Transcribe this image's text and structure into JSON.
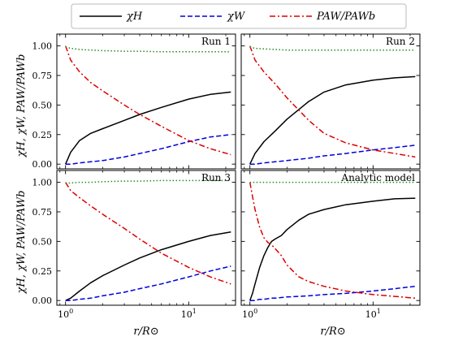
{
  "legend": [
    {
      "label": "χH",
      "color": "#000000",
      "dash": "solid"
    },
    {
      "label": "χW",
      "color": "#0000dd",
      "dash": "dashed"
    },
    {
      "label": "PAW/PAWb",
      "color": "#dd0000",
      "dash": "dashdot"
    }
  ],
  "labels": {
    "xlabel": "r/R⊙",
    "ylabel": "χH, χW, PAW/PAWb"
  },
  "chart_data": [
    {
      "type": "line",
      "title": "Run 1",
      "xscale": "log",
      "xlim": [
        0.85,
        24
      ],
      "ylim": [
        -0.04,
        1.1
      ],
      "xticks": [
        "10^0",
        "10^1"
      ],
      "yticks": [
        "0.00",
        "0.25",
        "0.50",
        "0.75",
        "1.00"
      ],
      "x": [
        1,
        1.1,
        1.3,
        1.6,
        2,
        3,
        4,
        6,
        10,
        15,
        22
      ],
      "series": [
        {
          "name": "χH",
          "values": [
            0.0,
            0.1,
            0.2,
            0.26,
            0.3,
            0.37,
            0.42,
            0.48,
            0.55,
            0.59,
            0.61
          ]
        },
        {
          "name": "χW",
          "values": [
            0.0,
            0.0,
            0.01,
            0.02,
            0.03,
            0.06,
            0.09,
            0.13,
            0.19,
            0.23,
            0.25
          ]
        },
        {
          "name": "PAW/PAWb",
          "values": [
            1.0,
            0.88,
            0.78,
            0.69,
            0.62,
            0.5,
            0.42,
            0.32,
            0.2,
            0.13,
            0.08
          ]
        },
        {
          "name": "",
          "values": [
            0.99,
            0.98,
            0.97,
            0.965,
            0.96,
            0.955,
            0.955,
            0.95,
            0.95,
            0.95,
            0.95
          ]
        }
      ]
    },
    {
      "type": "line",
      "title": "Run 2",
      "xscale": "log",
      "xlim": [
        0.85,
        24
      ],
      "ylim": [
        -0.04,
        1.1
      ],
      "xticks": [
        "10^0",
        "10^1"
      ],
      "yticks": [
        "0.00",
        "0.25",
        "0.50",
        "0.75",
        "1.00"
      ],
      "x": [
        1,
        1.1,
        1.3,
        1.6,
        2,
        3,
        4,
        6,
        10,
        15,
        22
      ],
      "series": [
        {
          "name": "χH",
          "values": [
            0.0,
            0.09,
            0.19,
            0.28,
            0.38,
            0.53,
            0.61,
            0.67,
            0.71,
            0.73,
            0.74
          ]
        },
        {
          "name": "χW",
          "values": [
            0.0,
            0.0,
            0.01,
            0.02,
            0.03,
            0.05,
            0.07,
            0.09,
            0.12,
            0.14,
            0.16
          ]
        },
        {
          "name": "PAW/PAWb",
          "values": [
            1.0,
            0.88,
            0.78,
            0.68,
            0.56,
            0.37,
            0.26,
            0.18,
            0.12,
            0.09,
            0.06
          ]
        },
        {
          "name": "",
          "values": [
            0.99,
            0.98,
            0.975,
            0.97,
            0.965,
            0.965,
            0.965,
            0.965,
            0.965,
            0.965,
            0.965
          ]
        }
      ]
    },
    {
      "type": "line",
      "title": "Run 3",
      "xscale": "log",
      "xlim": [
        0.85,
        24
      ],
      "ylim": [
        -0.04,
        1.1
      ],
      "xticks": [
        "10^0",
        "10^1"
      ],
      "yticks": [
        "0.00",
        "0.25",
        "0.50",
        "0.75",
        "1.00"
      ],
      "x": [
        1,
        1.1,
        1.3,
        1.6,
        2,
        3,
        4,
        6,
        10,
        15,
        22
      ],
      "series": [
        {
          "name": "χH",
          "values": [
            0.0,
            0.02,
            0.08,
            0.15,
            0.21,
            0.3,
            0.36,
            0.43,
            0.5,
            0.55,
            0.58
          ]
        },
        {
          "name": "χW",
          "values": [
            0.0,
            0.0,
            0.01,
            0.02,
            0.04,
            0.07,
            0.1,
            0.14,
            0.2,
            0.25,
            0.29
          ]
        },
        {
          "name": "PAW/PAWb",
          "values": [
            1.0,
            0.93,
            0.87,
            0.8,
            0.73,
            0.61,
            0.52,
            0.4,
            0.28,
            0.2,
            0.14
          ]
        },
        {
          "name": "",
          "values": [
            0.99,
            0.995,
            1.0,
            1.0,
            1.005,
            1.01,
            1.01,
            1.015,
            1.015,
            1.015,
            1.015
          ]
        }
      ]
    },
    {
      "type": "line",
      "title": "Analytic model",
      "xscale": "log",
      "xlim": [
        0.85,
        24
      ],
      "ylim": [
        -0.04,
        1.1
      ],
      "xticks": [
        "10^0",
        "10^1"
      ],
      "yticks": [
        "0.00",
        "0.25",
        "0.50",
        "0.75",
        "1.00"
      ],
      "x": [
        1,
        1.05,
        1.1,
        1.2,
        1.3,
        1.4,
        1.5,
        1.6,
        1.8,
        2,
        2.5,
        3,
        4,
        6,
        10,
        15,
        22
      ],
      "series": [
        {
          "name": "χH",
          "values": [
            0.0,
            0.06,
            0.14,
            0.28,
            0.38,
            0.45,
            0.5,
            0.52,
            0.55,
            0.6,
            0.68,
            0.73,
            0.77,
            0.81,
            0.84,
            0.86,
            0.865
          ]
        },
        {
          "name": "χW",
          "values": [
            0.0,
            0.0,
            0.0,
            0.01,
            0.01,
            0.015,
            0.02,
            0.02,
            0.025,
            0.03,
            0.035,
            0.04,
            0.05,
            0.06,
            0.08,
            0.1,
            0.12
          ]
        },
        {
          "name": "PAW/PAWb",
          "values": [
            1.0,
            0.88,
            0.77,
            0.62,
            0.53,
            0.49,
            0.47,
            0.44,
            0.38,
            0.3,
            0.2,
            0.16,
            0.12,
            0.08,
            0.05,
            0.035,
            0.02
          ]
        },
        {
          "name": "",
          "values": [
            1.0,
            1.0,
            1.0,
            1.0,
            1.0,
            1.0,
            1.0,
            1.0,
            1.0,
            1.0,
            1.0,
            1.0,
            1.0,
            1.0,
            1.0,
            1.0,
            1.0
          ]
        }
      ]
    }
  ]
}
